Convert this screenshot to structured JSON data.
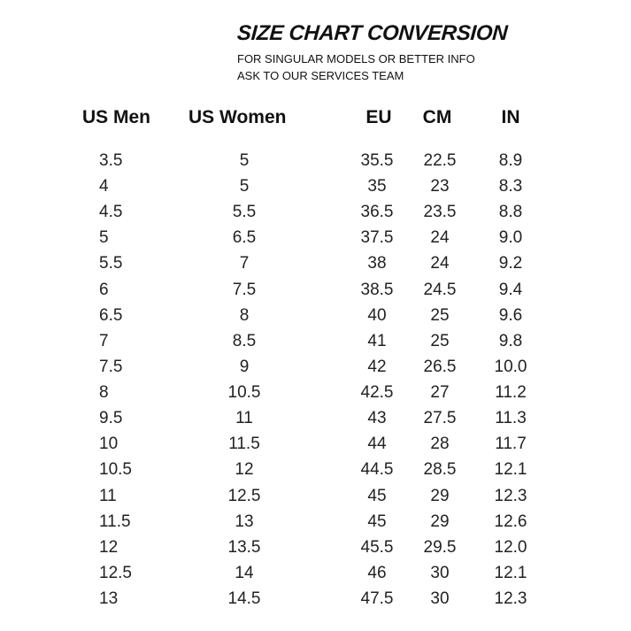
{
  "header": {
    "title": "SIZE CHART CONVERSION",
    "subtitle": [
      "FOR SINGULAR MODELS OR BETTER INFO",
      "ASK TO OUR SERVICES TEAM"
    ]
  },
  "table": {
    "columns": [
      "US Men",
      "US Women",
      "EU",
      "CM",
      "IN"
    ],
    "rows": [
      [
        "3.5",
        "5",
        "35.5",
        "22.5",
        "8.9"
      ],
      [
        "4",
        "5",
        "35",
        "23",
        "8.3"
      ],
      [
        "4.5",
        "5.5",
        "36.5",
        "23.5",
        "8.8"
      ],
      [
        "5",
        "6.5",
        "37.5",
        "24",
        "9.0"
      ],
      [
        "5.5",
        "7",
        "38",
        "24",
        "9.2"
      ],
      [
        "6",
        "7.5",
        "38.5",
        "24.5",
        "9.4"
      ],
      [
        "6.5",
        "8",
        "40",
        "25",
        "9.6"
      ],
      [
        "7",
        "8.5",
        "41",
        "25",
        "9.8"
      ],
      [
        "7.5",
        "9",
        "42",
        "26.5",
        "10.0"
      ],
      [
        "8",
        "10.5",
        "42.5",
        "27",
        "11.2"
      ],
      [
        "9.5",
        "11",
        "43",
        "27.5",
        "11.3"
      ],
      [
        "10",
        "11.5",
        "44",
        "28",
        "11.7"
      ],
      [
        "10.5",
        "12",
        "44.5",
        "28.5",
        "12.1"
      ],
      [
        "11",
        "12.5",
        "45",
        "29",
        "12.3"
      ],
      [
        "11.5",
        "13",
        "45",
        "29",
        "12.6"
      ],
      [
        "12",
        "13.5",
        "45.5",
        "29.5",
        "12.0"
      ],
      [
        "12.5",
        "14",
        "46",
        "30",
        "12.1"
      ],
      [
        "13",
        "14.5",
        "47.5",
        "30",
        "12.3"
      ]
    ]
  }
}
